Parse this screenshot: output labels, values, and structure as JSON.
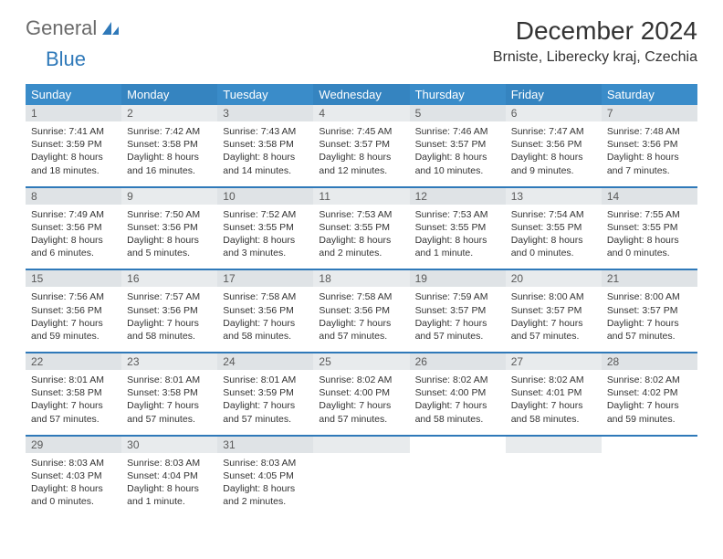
{
  "logo": {
    "text_gray": "General",
    "text_blue": "Blue"
  },
  "header": {
    "month_title": "December 2024",
    "location": "Brniste, Liberecky kraj, Czechia"
  },
  "colors": {
    "header_bg_odd": "#3a8cc9",
    "header_bg_even": "#3584c0",
    "daynum_bg_odd": "#dfe3e6",
    "daynum_bg_even": "#e8ebed",
    "row_divider": "#2f79b9",
    "logo_blue": "#2f79b9",
    "logo_gray": "#6a6a6a"
  },
  "weekdays": [
    "Sunday",
    "Monday",
    "Tuesday",
    "Wednesday",
    "Thursday",
    "Friday",
    "Saturday"
  ],
  "weeks": [
    [
      {
        "n": "1",
        "sr": "Sunrise: 7:41 AM",
        "ss": "Sunset: 3:59 PM",
        "d1": "Daylight: 8 hours",
        "d2": "and 18 minutes."
      },
      {
        "n": "2",
        "sr": "Sunrise: 7:42 AM",
        "ss": "Sunset: 3:58 PM",
        "d1": "Daylight: 8 hours",
        "d2": "and 16 minutes."
      },
      {
        "n": "3",
        "sr": "Sunrise: 7:43 AM",
        "ss": "Sunset: 3:58 PM",
        "d1": "Daylight: 8 hours",
        "d2": "and 14 minutes."
      },
      {
        "n": "4",
        "sr": "Sunrise: 7:45 AM",
        "ss": "Sunset: 3:57 PM",
        "d1": "Daylight: 8 hours",
        "d2": "and 12 minutes."
      },
      {
        "n": "5",
        "sr": "Sunrise: 7:46 AM",
        "ss": "Sunset: 3:57 PM",
        "d1": "Daylight: 8 hours",
        "d2": "and 10 minutes."
      },
      {
        "n": "6",
        "sr": "Sunrise: 7:47 AM",
        "ss": "Sunset: 3:56 PM",
        "d1": "Daylight: 8 hours",
        "d2": "and 9 minutes."
      },
      {
        "n": "7",
        "sr": "Sunrise: 7:48 AM",
        "ss": "Sunset: 3:56 PM",
        "d1": "Daylight: 8 hours",
        "d2": "and 7 minutes."
      }
    ],
    [
      {
        "n": "8",
        "sr": "Sunrise: 7:49 AM",
        "ss": "Sunset: 3:56 PM",
        "d1": "Daylight: 8 hours",
        "d2": "and 6 minutes."
      },
      {
        "n": "9",
        "sr": "Sunrise: 7:50 AM",
        "ss": "Sunset: 3:56 PM",
        "d1": "Daylight: 8 hours",
        "d2": "and 5 minutes."
      },
      {
        "n": "10",
        "sr": "Sunrise: 7:52 AM",
        "ss": "Sunset: 3:55 PM",
        "d1": "Daylight: 8 hours",
        "d2": "and 3 minutes."
      },
      {
        "n": "11",
        "sr": "Sunrise: 7:53 AM",
        "ss": "Sunset: 3:55 PM",
        "d1": "Daylight: 8 hours",
        "d2": "and 2 minutes."
      },
      {
        "n": "12",
        "sr": "Sunrise: 7:53 AM",
        "ss": "Sunset: 3:55 PM",
        "d1": "Daylight: 8 hours",
        "d2": "and 1 minute."
      },
      {
        "n": "13",
        "sr": "Sunrise: 7:54 AM",
        "ss": "Sunset: 3:55 PM",
        "d1": "Daylight: 8 hours",
        "d2": "and 0 minutes."
      },
      {
        "n": "14",
        "sr": "Sunrise: 7:55 AM",
        "ss": "Sunset: 3:55 PM",
        "d1": "Daylight: 8 hours",
        "d2": "and 0 minutes."
      }
    ],
    [
      {
        "n": "15",
        "sr": "Sunrise: 7:56 AM",
        "ss": "Sunset: 3:56 PM",
        "d1": "Daylight: 7 hours",
        "d2": "and 59 minutes."
      },
      {
        "n": "16",
        "sr": "Sunrise: 7:57 AM",
        "ss": "Sunset: 3:56 PM",
        "d1": "Daylight: 7 hours",
        "d2": "and 58 minutes."
      },
      {
        "n": "17",
        "sr": "Sunrise: 7:58 AM",
        "ss": "Sunset: 3:56 PM",
        "d1": "Daylight: 7 hours",
        "d2": "and 58 minutes."
      },
      {
        "n": "18",
        "sr": "Sunrise: 7:58 AM",
        "ss": "Sunset: 3:56 PM",
        "d1": "Daylight: 7 hours",
        "d2": "and 57 minutes."
      },
      {
        "n": "19",
        "sr": "Sunrise: 7:59 AM",
        "ss": "Sunset: 3:57 PM",
        "d1": "Daylight: 7 hours",
        "d2": "and 57 minutes."
      },
      {
        "n": "20",
        "sr": "Sunrise: 8:00 AM",
        "ss": "Sunset: 3:57 PM",
        "d1": "Daylight: 7 hours",
        "d2": "and 57 minutes."
      },
      {
        "n": "21",
        "sr": "Sunrise: 8:00 AM",
        "ss": "Sunset: 3:57 PM",
        "d1": "Daylight: 7 hours",
        "d2": "and 57 minutes."
      }
    ],
    [
      {
        "n": "22",
        "sr": "Sunrise: 8:01 AM",
        "ss": "Sunset: 3:58 PM",
        "d1": "Daylight: 7 hours",
        "d2": "and 57 minutes."
      },
      {
        "n": "23",
        "sr": "Sunrise: 8:01 AM",
        "ss": "Sunset: 3:58 PM",
        "d1": "Daylight: 7 hours",
        "d2": "and 57 minutes."
      },
      {
        "n": "24",
        "sr": "Sunrise: 8:01 AM",
        "ss": "Sunset: 3:59 PM",
        "d1": "Daylight: 7 hours",
        "d2": "and 57 minutes."
      },
      {
        "n": "25",
        "sr": "Sunrise: 8:02 AM",
        "ss": "Sunset: 4:00 PM",
        "d1": "Daylight: 7 hours",
        "d2": "and 57 minutes."
      },
      {
        "n": "26",
        "sr": "Sunrise: 8:02 AM",
        "ss": "Sunset: 4:00 PM",
        "d1": "Daylight: 7 hours",
        "d2": "and 58 minutes."
      },
      {
        "n": "27",
        "sr": "Sunrise: 8:02 AM",
        "ss": "Sunset: 4:01 PM",
        "d1": "Daylight: 7 hours",
        "d2": "and 58 minutes."
      },
      {
        "n": "28",
        "sr": "Sunrise: 8:02 AM",
        "ss": "Sunset: 4:02 PM",
        "d1": "Daylight: 7 hours",
        "d2": "and 59 minutes."
      }
    ],
    [
      {
        "n": "29",
        "sr": "Sunrise: 8:03 AM",
        "ss": "Sunset: 4:03 PM",
        "d1": "Daylight: 8 hours",
        "d2": "and 0 minutes."
      },
      {
        "n": "30",
        "sr": "Sunrise: 8:03 AM",
        "ss": "Sunset: 4:04 PM",
        "d1": "Daylight: 8 hours",
        "d2": "and 1 minute."
      },
      {
        "n": "31",
        "sr": "Sunrise: 8:03 AM",
        "ss": "Sunset: 4:05 PM",
        "d1": "Daylight: 8 hours",
        "d2": "and 2 minutes."
      },
      null,
      null,
      null,
      null
    ]
  ]
}
